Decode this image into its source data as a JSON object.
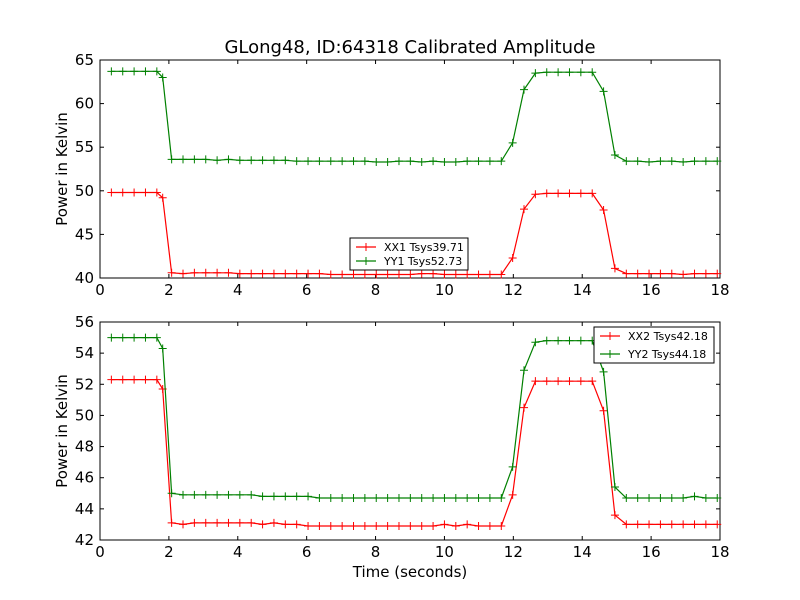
{
  "figure_title": "GLong48, ID:64318 Calibrated Amplitude",
  "chart_data": [
    {
      "type": "line",
      "xlabel": "",
      "ylabel": "Power in Kelvin",
      "xlim": [
        0,
        18
      ],
      "ylim": [
        40,
        65
      ],
      "xticks": [
        0,
        2,
        4,
        6,
        8,
        10,
        12,
        14,
        16,
        18
      ],
      "yticks": [
        40,
        45,
        50,
        55,
        60,
        65
      ],
      "grid": false,
      "legend_position": "lower-center",
      "x": [
        0.33,
        0.66,
        0.99,
        1.32,
        1.65,
        1.82,
        2.08,
        2.41,
        2.74,
        3.07,
        3.4,
        3.73,
        4.06,
        4.39,
        4.72,
        5.05,
        5.38,
        5.71,
        6.04,
        6.37,
        6.7,
        7.03,
        7.36,
        7.69,
        8.02,
        8.35,
        8.68,
        9.01,
        9.34,
        9.67,
        10.0,
        10.33,
        10.66,
        10.99,
        11.32,
        11.65,
        11.98,
        12.31,
        12.64,
        12.97,
        13.3,
        13.63,
        13.96,
        14.29,
        14.62,
        14.95,
        15.28,
        15.61,
        15.94,
        16.27,
        16.6,
        16.93,
        17.26,
        17.59,
        17.92
      ],
      "series": [
        {
          "name": "XX1 Tsys39.71",
          "color": "#ff0000",
          "values": [
            49.8,
            49.8,
            49.8,
            49.8,
            49.8,
            49.2,
            40.6,
            40.5,
            40.6,
            40.6,
            40.6,
            40.6,
            40.5,
            40.5,
            40.5,
            40.5,
            40.5,
            40.5,
            40.5,
            40.5,
            40.4,
            40.4,
            40.4,
            40.4,
            40.4,
            40.4,
            40.4,
            40.4,
            40.5,
            40.5,
            40.4,
            40.4,
            40.4,
            40.4,
            40.4,
            40.4,
            42.3,
            47.9,
            49.6,
            49.7,
            49.7,
            49.7,
            49.7,
            49.7,
            47.8,
            41.1,
            40.5,
            40.5,
            40.5,
            40.5,
            40.5,
            40.4,
            40.5,
            40.5,
            40.5
          ]
        },
        {
          "name": "YY1 Tsys52.73",
          "color": "#008000",
          "values": [
            63.7,
            63.7,
            63.7,
            63.7,
            63.7,
            63.0,
            53.6,
            53.6,
            53.6,
            53.6,
            53.5,
            53.6,
            53.5,
            53.5,
            53.5,
            53.5,
            53.5,
            53.4,
            53.4,
            53.4,
            53.4,
            53.4,
            53.4,
            53.4,
            53.3,
            53.3,
            53.4,
            53.4,
            53.3,
            53.4,
            53.3,
            53.3,
            53.4,
            53.4,
            53.4,
            53.4,
            55.5,
            61.6,
            63.5,
            63.6,
            63.6,
            63.6,
            63.6,
            63.6,
            61.4,
            54.1,
            53.4,
            53.4,
            53.3,
            53.4,
            53.4,
            53.3,
            53.4,
            53.4,
            53.4
          ]
        }
      ]
    },
    {
      "type": "line",
      "xlabel": "Time (seconds)",
      "ylabel": "Power in Kelvin",
      "xlim": [
        0,
        18
      ],
      "ylim": [
        42,
        56
      ],
      "xticks": [
        0,
        2,
        4,
        6,
        8,
        10,
        12,
        14,
        16,
        18
      ],
      "yticks": [
        42,
        44,
        46,
        48,
        50,
        52,
        54,
        56
      ],
      "grid": false,
      "legend_position": "upper-right",
      "x": [
        0.33,
        0.66,
        0.99,
        1.32,
        1.65,
        1.82,
        2.08,
        2.41,
        2.74,
        3.07,
        3.4,
        3.73,
        4.06,
        4.39,
        4.72,
        5.05,
        5.38,
        5.71,
        6.04,
        6.37,
        6.7,
        7.03,
        7.36,
        7.69,
        8.02,
        8.35,
        8.68,
        9.01,
        9.34,
        9.67,
        10.0,
        10.33,
        10.66,
        10.99,
        11.32,
        11.65,
        11.98,
        12.31,
        12.64,
        12.97,
        13.3,
        13.63,
        13.96,
        14.29,
        14.62,
        14.95,
        15.28,
        15.61,
        15.94,
        16.27,
        16.6,
        16.93,
        17.26,
        17.59,
        17.92
      ],
      "series": [
        {
          "name": "XX2 Tsys42.18",
          "color": "#ff0000",
          "values": [
            52.3,
            52.3,
            52.3,
            52.3,
            52.3,
            51.7,
            43.1,
            43.0,
            43.1,
            43.1,
            43.1,
            43.1,
            43.1,
            43.1,
            43.0,
            43.1,
            43.0,
            43.0,
            42.9,
            42.9,
            42.9,
            42.9,
            42.9,
            42.9,
            42.9,
            42.9,
            42.9,
            42.9,
            42.9,
            42.9,
            43.0,
            42.9,
            43.0,
            42.9,
            42.9,
            42.9,
            44.9,
            50.5,
            52.2,
            52.2,
            52.2,
            52.2,
            52.2,
            52.2,
            50.3,
            43.6,
            43.0,
            43.0,
            43.0,
            43.0,
            43.0,
            43.0,
            43.0,
            43.0,
            43.0
          ]
        },
        {
          "name": "YY2 Tsys44.18",
          "color": "#008000",
          "values": [
            55.0,
            55.0,
            55.0,
            55.0,
            55.0,
            54.3,
            45.0,
            44.9,
            44.9,
            44.9,
            44.9,
            44.9,
            44.9,
            44.9,
            44.8,
            44.8,
            44.8,
            44.8,
            44.8,
            44.7,
            44.7,
            44.7,
            44.7,
            44.7,
            44.7,
            44.7,
            44.7,
            44.7,
            44.7,
            44.7,
            44.7,
            44.7,
            44.7,
            44.7,
            44.7,
            44.7,
            46.7,
            52.9,
            54.7,
            54.8,
            54.8,
            54.8,
            54.8,
            54.8,
            52.8,
            45.4,
            44.7,
            44.7,
            44.7,
            44.7,
            44.7,
            44.7,
            44.8,
            44.7,
            44.7
          ]
        }
      ]
    }
  ]
}
